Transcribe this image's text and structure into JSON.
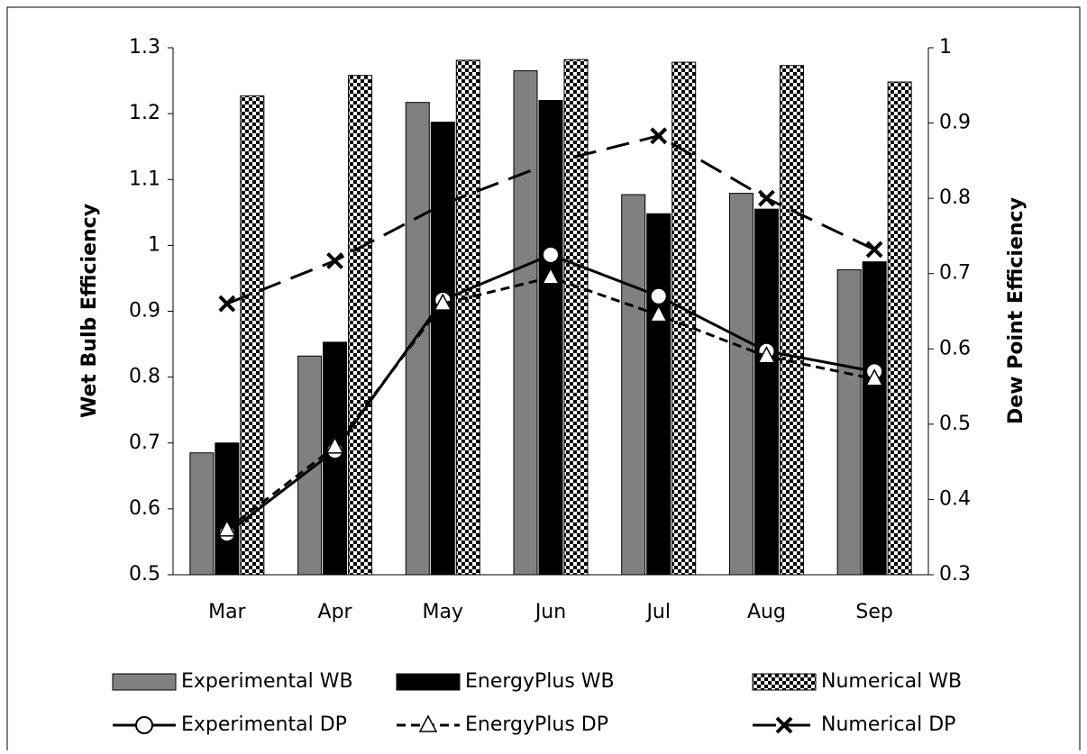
{
  "chart_data": {
    "type": "bar",
    "categories": [
      "Mar",
      "Apr",
      "May",
      "Jun",
      "Jul",
      "Aug",
      "Sep"
    ],
    "ylabel": "Wet Bulb Efficiency",
    "y2label": "Dew Point Efficiency",
    "ylim": [
      0.5,
      1.3
    ],
    "yticks": [
      0.5,
      0.6,
      0.7,
      0.8,
      0.9,
      1,
      1.1,
      1.2,
      1.3
    ],
    "y2lim": [
      0.3,
      1
    ],
    "y2ticks": [
      0.3,
      0.4,
      0.5,
      0.6,
      0.7,
      0.8,
      0.9,
      1
    ],
    "legend": "bottom",
    "series": [
      {
        "name": "Experimental WB",
        "type": "bar",
        "color": "#808080",
        "values": [
          0.685,
          0.832,
          1.217,
          1.265,
          1.077,
          1.079,
          0.963
        ]
      },
      {
        "name": "EnergyPlus WB",
        "type": "bar",
        "color": "#000000",
        "values": [
          0.7,
          0.853,
          1.187,
          1.22,
          1.048,
          1.055,
          0.975
        ]
      },
      {
        "name": "Numerical WB",
        "type": "bar",
        "color": "#000000",
        "pattern": "checker",
        "values": [
          1.227,
          1.258,
          1.281,
          1.282,
          1.278,
          1.273,
          1.248
        ]
      },
      {
        "name": "Experimental DP",
        "type": "line",
        "axis": "y2",
        "color": "#000000",
        "marker": "circle",
        "dash": "solid",
        "values": [
          0.355,
          0.465,
          0.665,
          0.725,
          0.67,
          0.597,
          0.57
        ]
      },
      {
        "name": "EnergyPlus DP",
        "type": "line",
        "axis": "y2",
        "color": "#000000",
        "marker": "triangle",
        "dash": "dashed",
        "values": [
          0.36,
          0.47,
          0.66,
          0.695,
          0.645,
          0.59,
          0.56
        ]
      },
      {
        "name": "Numerical DP",
        "type": "line",
        "axis": "y2",
        "color": "#000000",
        "marker": "x",
        "dash": "longdash",
        "values": [
          0.66,
          0.717,
          0.792,
          0.847,
          0.883,
          0.8,
          0.732
        ]
      }
    ]
  }
}
